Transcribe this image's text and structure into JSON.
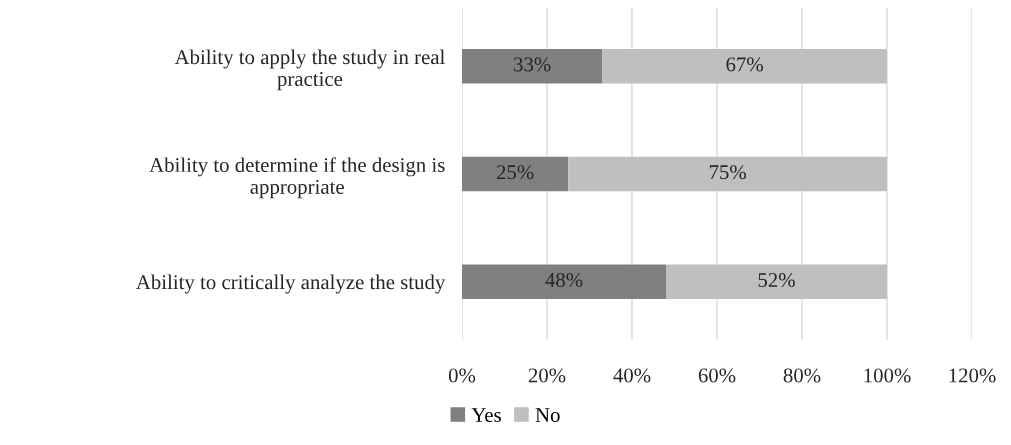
{
  "chart_data": {
    "type": "bar",
    "orientation": "horizontal",
    "stacked": true,
    "categories": [
      "Ability to apply the study in real\npractice",
      "Ability to determine if the design is\nappropriate",
      "Ability to critically analyze the study"
    ],
    "series": [
      {
        "name": "Yes",
        "color": "#808080",
        "values": [
          33,
          25,
          48
        ],
        "value_labels": [
          "33%",
          "25%",
          "48%"
        ]
      },
      {
        "name": "No",
        "color": "#bfbfbf",
        "values": [
          67,
          75,
          52
        ],
        "value_labels": [
          "67%",
          "75%",
          "52%"
        ]
      }
    ],
    "xlim": [
      0,
      120
    ],
    "xticks": [
      {
        "value": 0,
        "label": "0%"
      },
      {
        "value": 20,
        "label": "20%"
      },
      {
        "value": 40,
        "label": "40%"
      },
      {
        "value": 60,
        "label": "60%"
      },
      {
        "value": 80,
        "label": "80%"
      },
      {
        "value": 100,
        "label": "100%"
      },
      {
        "value": 120,
        "label": "120%"
      }
    ],
    "grid": "x",
    "legend": "bottom"
  }
}
